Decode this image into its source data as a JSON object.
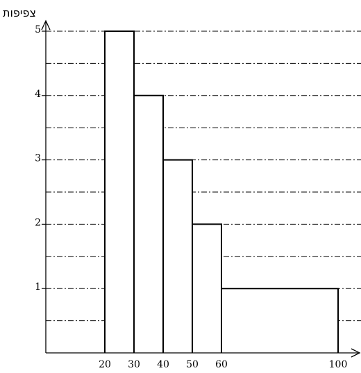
{
  "chart_data": {
    "type": "bar",
    "title": "",
    "ylabel": "צפיפות",
    "xlabel": "",
    "bins": [
      {
        "x0": 20,
        "x1": 30,
        "value": 5
      },
      {
        "x0": 30,
        "x1": 40,
        "value": 4
      },
      {
        "x0": 40,
        "x1": 50,
        "value": 3
      },
      {
        "x0": 50,
        "x1": 60,
        "value": 2
      },
      {
        "x0": 60,
        "x1": 100,
        "value": 1
      }
    ],
    "x_ticks": [
      "20",
      "30",
      "40",
      "50",
      "60",
      "100"
    ],
    "y_ticks": [
      "1",
      "2",
      "3",
      "4",
      "5"
    ],
    "ylim": [
      0,
      5
    ],
    "gridlines": [
      0.5,
      1,
      1.5,
      2,
      2.5,
      3,
      3.5,
      4,
      4.5,
      5
    ],
    "grid": true,
    "legend": "none"
  }
}
